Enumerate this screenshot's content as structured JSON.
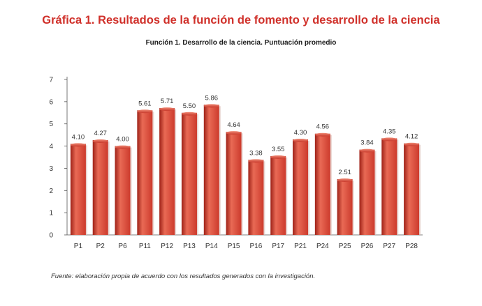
{
  "chart_data": {
    "type": "bar",
    "title": "Gráfica 1. Resultados de la función de fomento y desarrollo de la ciencia",
    "subtitle": "Función 1. Desarrollo de la ciencia. Puntuación promedio",
    "categories": [
      "P1",
      "P2",
      "P6",
      "P11",
      "P12",
      "P13",
      "P14",
      "P15",
      "P16",
      "P17",
      "P21",
      "P24",
      "P25",
      "P26",
      "P27",
      "P28"
    ],
    "values": [
      4.1,
      4.27,
      4.0,
      5.61,
      5.71,
      5.5,
      5.86,
      4.64,
      3.38,
      3.55,
      4.3,
      4.56,
      2.51,
      3.84,
      4.35,
      4.12
    ],
    "data_labels": [
      "4.10",
      "4.27",
      "4.00",
      "5.61",
      "5.71",
      "5.50",
      "5.86",
      "4.64",
      "3.38",
      "3.55",
      "4.30",
      "4.56",
      "2.51",
      "3.84",
      "4.35",
      "4.12"
    ],
    "yticks": [
      "0",
      "1",
      "2",
      "3",
      "4",
      "5",
      "6",
      "7"
    ],
    "ylim": [
      0,
      7
    ],
    "xlabel": "",
    "ylabel": "",
    "grid": false,
    "legend": "none",
    "bar_color": "#cc3a2c",
    "bar_highlight": "#e96a55",
    "bar_shadow": "#9e2218"
  },
  "source": "Fuente: elaboración propia de acuerdo con los resultados generados con la investigación."
}
